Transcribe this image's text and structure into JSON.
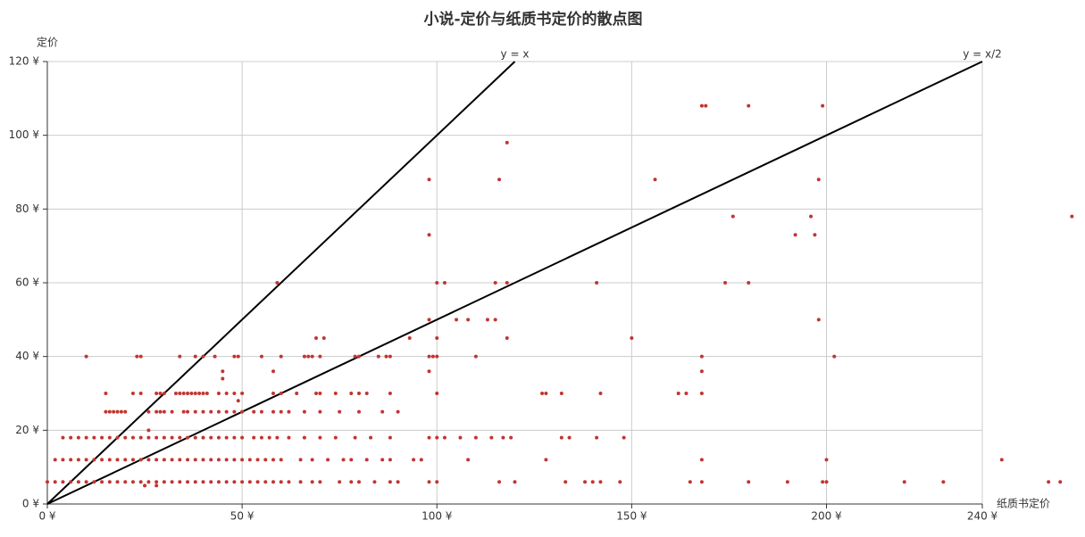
{
  "chart_data": {
    "type": "scatter",
    "title": "小说-定价与纸质书定价的散点图",
    "x_label": "纸质书定价",
    "y_label": "定价",
    "color": "#c23531",
    "grid": true,
    "xlim": [
      0,
      240
    ],
    "ylim": [
      0,
      120
    ],
    "xticks": [
      {
        "value": 0,
        "label": "0 ¥"
      },
      {
        "value": 50,
        "label": "50 ¥"
      },
      {
        "value": 100,
        "label": "100 ¥"
      },
      {
        "value": 150,
        "label": "150 ¥"
      },
      {
        "value": 200,
        "label": "200 ¥"
      },
      {
        "value": 240,
        "label": "240 ¥"
      }
    ],
    "yticks": [
      {
        "value": 0,
        "label": "0 ¥"
      },
      {
        "value": 20,
        "label": "20 ¥"
      },
      {
        "value": 40,
        "label": "40 ¥"
      },
      {
        "value": 60,
        "label": "60 ¥"
      },
      {
        "value": 80,
        "label": "80 ¥"
      },
      {
        "value": 100,
        "label": "100 ¥"
      },
      {
        "value": 120,
        "label": "120 ¥"
      }
    ],
    "reference_lines": [
      {
        "label": "y = x",
        "x": [
          0,
          120
        ],
        "y": [
          0,
          120
        ]
      },
      {
        "label": "y = x/2",
        "x": [
          0,
          240
        ],
        "y": [
          0,
          120
        ]
      }
    ],
    "x": [
      0,
      2,
      4,
      6,
      8,
      10,
      12,
      14,
      16,
      18,
      20,
      22,
      24,
      26,
      28,
      30,
      32,
      34,
      36,
      38,
      40,
      42,
      44,
      46,
      48,
      50,
      52,
      54,
      56,
      58,
      60,
      62,
      65,
      68,
      70,
      75,
      78,
      80,
      84,
      88,
      90,
      98,
      100,
      116,
      120,
      133,
      138,
      140,
      142,
      147,
      165,
      168,
      180,
      190,
      199,
      200,
      220,
      230,
      257,
      260,
      2,
      4,
      6,
      8,
      10,
      12,
      14,
      16,
      18,
      20,
      22,
      24,
      26,
      28,
      30,
      32,
      34,
      36,
      38,
      40,
      42,
      44,
      46,
      48,
      50,
      52,
      54,
      56,
      58,
      60,
      65,
      68,
      72,
      76,
      78,
      82,
      86,
      88,
      94,
      96,
      108,
      128,
      168,
      200,
      245,
      4,
      6,
      8,
      10,
      12,
      14,
      16,
      18,
      20,
      22,
      24,
      26,
      28,
      30,
      32,
      34,
      36,
      38,
      40,
      42,
      44,
      46,
      48,
      50,
      53,
      55,
      57,
      59,
      62,
      66,
      70,
      74,
      79,
      83,
      88,
      98,
      100,
      102,
      106,
      110,
      114,
      117,
      119,
      132,
      134,
      141,
      148,
      15,
      16,
      17,
      18,
      19,
      20,
      26,
      28,
      29,
      30,
      32,
      35,
      36,
      38,
      40,
      42,
      44,
      46,
      48,
      50,
      53,
      55,
      58,
      60,
      62,
      66,
      70,
      75,
      80,
      86,
      90,
      15,
      22,
      24,
      28,
      29,
      30,
      33,
      34,
      35,
      36,
      37,
      38,
      39,
      40,
      41,
      44,
      46,
      48,
      50,
      58,
      60,
      64,
      69,
      70,
      74,
      78,
      80,
      82,
      88,
      100,
      127,
      128,
      132,
      142,
      162,
      164,
      168,
      10,
      23,
      24,
      34,
      38,
      40,
      43,
      48,
      49,
      55,
      60,
      66,
      67,
      68,
      70,
      79,
      80,
      85,
      87,
      88,
      98,
      99,
      100,
      110,
      168,
      202,
      69,
      71,
      93,
      100,
      118,
      150,
      98,
      105,
      108,
      113,
      115,
      198,
      59,
      100,
      102,
      115,
      118,
      141,
      174,
      180,
      98,
      192,
      197,
      176,
      196,
      263,
      98,
      116,
      156,
      198,
      118,
      168,
      169,
      180,
      199,
      45,
      58,
      98,
      168,
      45,
      26,
      49,
      25,
      28
    ],
    "values": [
      6,
      6,
      6,
      6,
      6,
      6,
      6,
      6,
      6,
      6,
      6,
      6,
      6,
      6,
      6,
      6,
      6,
      6,
      6,
      6,
      6,
      6,
      6,
      6,
      6,
      6,
      6,
      6,
      6,
      6,
      6,
      6,
      6,
      6,
      6,
      6,
      6,
      6,
      6,
      6,
      6,
      6,
      6,
      6,
      6,
      6,
      6,
      6,
      6,
      6,
      6,
      6,
      6,
      6,
      6,
      6,
      6,
      6,
      6,
      6,
      12,
      12,
      12,
      12,
      12,
      12,
      12,
      12,
      12,
      12,
      12,
      12,
      12,
      12,
      12,
      12,
      12,
      12,
      12,
      12,
      12,
      12,
      12,
      12,
      12,
      12,
      12,
      12,
      12,
      12,
      12,
      12,
      12,
      12,
      12,
      12,
      12,
      12,
      12,
      12,
      12,
      12,
      12,
      12,
      12,
      18,
      18,
      18,
      18,
      18,
      18,
      18,
      18,
      18,
      18,
      18,
      18,
      18,
      18,
      18,
      18,
      18,
      18,
      18,
      18,
      18,
      18,
      18,
      18,
      18,
      18,
      18,
      18,
      18,
      18,
      18,
      18,
      18,
      18,
      18,
      18,
      18,
      18,
      18,
      18,
      18,
      18,
      18,
      18,
      18,
      18,
      18,
      25,
      25,
      25,
      25,
      25,
      25,
      25,
      25,
      25,
      25,
      25,
      25,
      25,
      25,
      25,
      25,
      25,
      25,
      25,
      25,
      25,
      25,
      25,
      25,
      25,
      25,
      25,
      25,
      25,
      25,
      25,
      30,
      30,
      30,
      30,
      30,
      30,
      30,
      30,
      30,
      30,
      30,
      30,
      30,
      30,
      30,
      30,
      30,
      30,
      30,
      30,
      30,
      30,
      30,
      30,
      30,
      30,
      30,
      30,
      30,
      30,
      30,
      30,
      30,
      30,
      30,
      30,
      30,
      40,
      40,
      40,
      40,
      40,
      40,
      40,
      40,
      40,
      40,
      40,
      40,
      40,
      40,
      40,
      40,
      40,
      40,
      40,
      40,
      40,
      40,
      40,
      40,
      40,
      40,
      45,
      45,
      45,
      45,
      45,
      45,
      50,
      50,
      50,
      50,
      50,
      50,
      60,
      60,
      60,
      60,
      60,
      60,
      60,
      60,
      73,
      73,
      73,
      78,
      78,
      78,
      88,
      88,
      88,
      88,
      98,
      108,
      108,
      108,
      108,
      36,
      36,
      36,
      36,
      34,
      20,
      28,
      5,
      5
    ]
  }
}
